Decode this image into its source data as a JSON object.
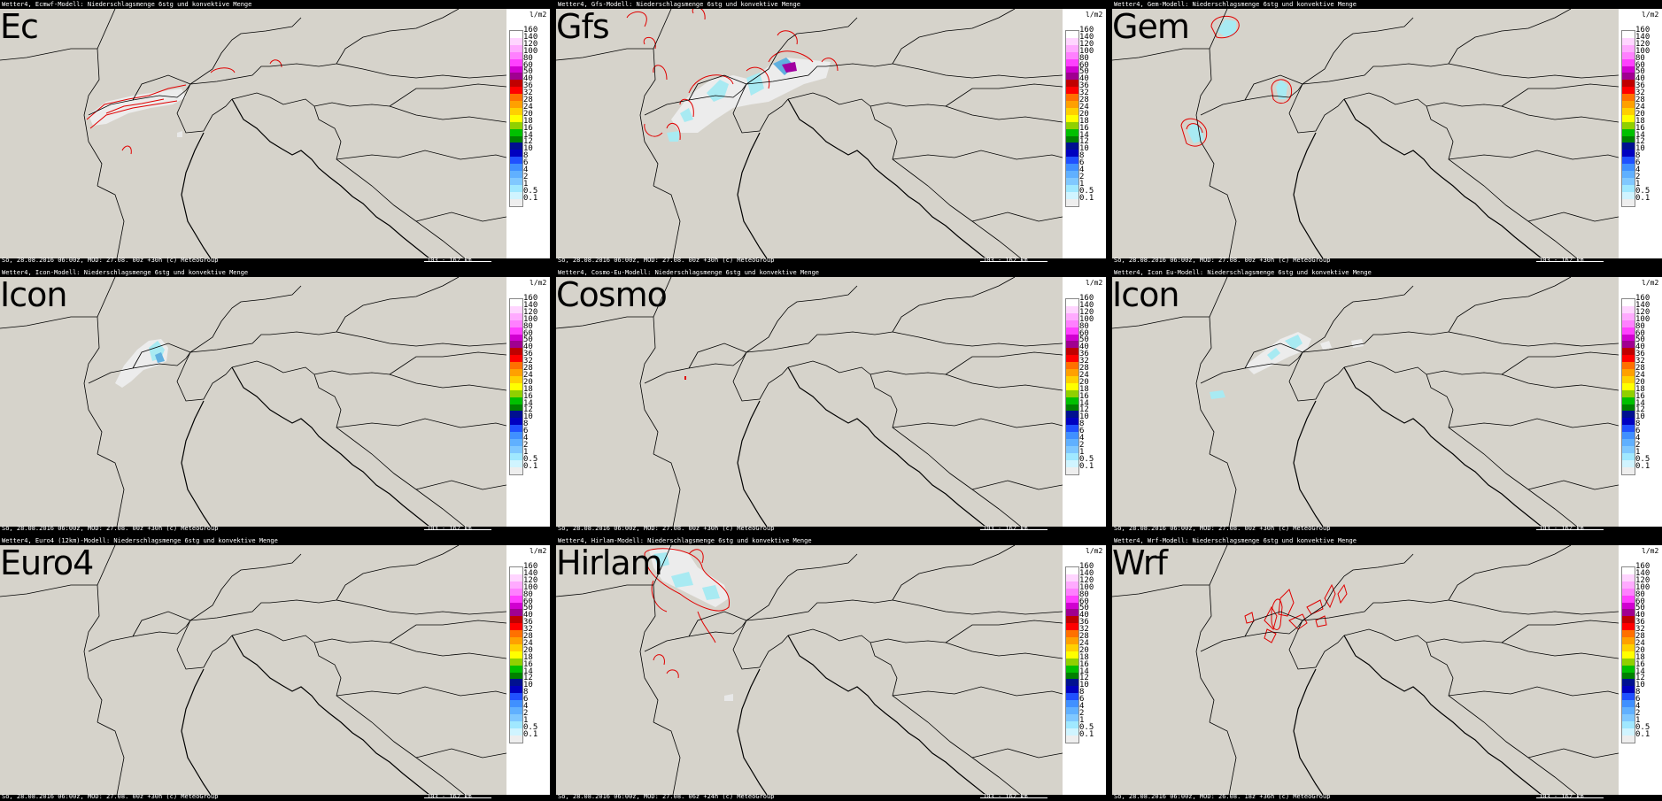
{
  "panels": [
    {
      "id": "ec",
      "label": "Ec",
      "header": "Wetter4, Ecmwf-Modell: Niederschlagsmenge 6stg und konvektive Menge",
      "footer": "So, 28.08.2016 06:00z, MOD: 27.08. 00z +30h (c) MeteoGroup",
      "scale": "103 - 162 km",
      "precip": "ec"
    },
    {
      "id": "gfs",
      "label": "Gfs",
      "header": "Wetter4, Gfs-Modell: Niederschlagsmenge 6stg und konvektive Menge",
      "footer": "So, 28.08.2016 06:00z, MOD: 27.08. 00z +30h (c) MeteoGroup",
      "scale": "103 - 162 km",
      "precip": "gfs"
    },
    {
      "id": "gem",
      "label": "Gem",
      "header": "Wetter4, Gem-Modell: Niederschlagsmenge 6stg und konvektive Menge",
      "footer": "So, 28.08.2016 06:00z, MOD: 27.08. 00z +30h (c) MeteoGroup",
      "scale": "103 - 162 km",
      "precip": "gem"
    },
    {
      "id": "icon",
      "label": "Icon",
      "header": "Wetter4, Icon-Modell: Niederschlagsmenge 6stg und konvektive Menge",
      "footer": "So, 28.08.2016 06:00z, MOD: 27.08. 00z +30h (c) MeteoGroup",
      "scale": "103 - 162 km",
      "precip": "icon"
    },
    {
      "id": "cosmo",
      "label": "Cosmo",
      "header": "Wetter4, Cosmo-Eu-Modell: Niederschlagsmenge 6stg und konvektive Menge",
      "footer": "So, 28.08.2016 06:00z, MOD: 27.08. 00z +30h (c) MeteoGroup",
      "scale": "103 - 162 km",
      "precip": "cosmo"
    },
    {
      "id": "iconeu",
      "label": "Icon",
      "header": "Wetter4, Icon Eu-Modell: Niederschlagsmenge 6stg und konvektive Menge",
      "footer": "So, 28.08.2016 06:00z, MOD: 27.08. 00z +30h (c) MeteoGroup",
      "scale": "103 - 162 km",
      "precip": "iconeu"
    },
    {
      "id": "euro4",
      "label": "Euro4",
      "header": "Wetter4, Euro4 (12km)-Modell: Niederschlagsmenge 6stg und konvektive Menge",
      "footer": "So, 28.08.2016 06:00z, MOD: 27.08. 00z +30h (c) MeteoGroup",
      "scale": "103 - 162 km",
      "precip": "none"
    },
    {
      "id": "hirlam",
      "label": "Hirlam",
      "header": "Wetter4, Hirlam-Modell: Niederschlagsmenge 6stg und konvektive Menge",
      "footer": "So, 28.08.2016 06:00z, MOD: 27.08. 06z +24h (c) MeteoGroup",
      "scale": "103 - 162 km",
      "precip": "hirlam"
    },
    {
      "id": "wrf",
      "label": "Wrf",
      "header": "Wetter4, Wrf-Modell: Niederschlagsmenge 6stg und konvektive Menge",
      "footer": "So, 28.08.2016 06:00z, MOD: 26.08. 18z +36h (c) MeteoGroup",
      "scale": "103 - 162 km",
      "precip": "wrf"
    }
  ],
  "legend": {
    "unit": "l/m2",
    "levels": [
      "160",
      "140",
      "120",
      "100",
      "80",
      "60",
      "50",
      "40",
      "36",
      "32",
      "28",
      "24",
      "20",
      "18",
      "16",
      "14",
      "12",
      "10",
      "8",
      "6",
      "4",
      "2",
      "1",
      "0.5",
      "0.1"
    ],
    "colors": [
      "#ffffff",
      "#ffd5ff",
      "#ffaaff",
      "#ff80ff",
      "#ff40ff",
      "#d000d0",
      "#a00090",
      "#c00000",
      "#ff0000",
      "#ff7000",
      "#ffa000",
      "#ffd000",
      "#ffff00",
      "#90d000",
      "#00c000",
      "#008000",
      "#001090",
      "#0000c0",
      "#2050ff",
      "#4090ff",
      "#60b0ff",
      "#80c8ff",
      "#a0e8ff",
      "#d0f4ff",
      "#eeeeee"
    ]
  },
  "colors": {
    "land": "#d6d3cb",
    "border": "#000000",
    "contour": "#e00000",
    "fill_light": "#ececec",
    "fill_cyan": "#a8eaf2",
    "fill_blue": "#60b0e0",
    "fill_purple": "#a000a0"
  }
}
